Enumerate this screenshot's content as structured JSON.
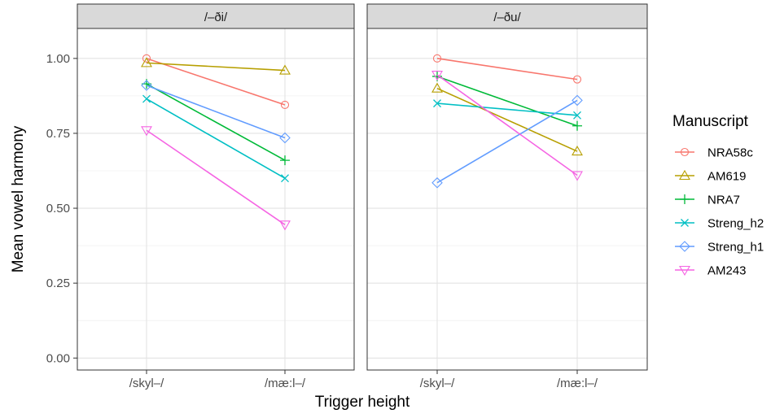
{
  "chart_data": {
    "type": "line",
    "ylabel": "Mean vowel harmony",
    "xlabel": "Trigger height",
    "categories": [
      "/skyl–/",
      "/mæ:l–/"
    ],
    "ylim": [
      -0.04,
      1.1
    ],
    "yticks": [
      0.0,
      0.25,
      0.5,
      0.75,
      1.0
    ],
    "ytick_labels": [
      "0.00",
      "0.25",
      "0.50",
      "0.75",
      "1.00"
    ],
    "grid": true,
    "legend": {
      "title": "Manuscript",
      "placement": "right"
    },
    "series_styles": [
      {
        "name": "NRA58c",
        "color": "#F8766D",
        "marker": "circle"
      },
      {
        "name": "AM619",
        "color": "#B79F00",
        "marker": "triangle-up"
      },
      {
        "name": "NRA7",
        "color": "#00BA38",
        "marker": "plus"
      },
      {
        "name": "Streng_h2",
        "color": "#00BFC4",
        "marker": "cross"
      },
      {
        "name": "Streng_h1",
        "color": "#619CFF",
        "marker": "diamond"
      },
      {
        "name": "AM243",
        "color": "#F564E3",
        "marker": "triangle-down"
      }
    ],
    "panels": [
      {
        "title": "/–ði/",
        "series": [
          {
            "name": "NRA58c",
            "values": [
              1.0,
              0.845
            ]
          },
          {
            "name": "AM619",
            "values": [
              0.985,
              0.96
            ]
          },
          {
            "name": "NRA7",
            "values": [
              0.915,
              0.66
            ]
          },
          {
            "name": "Streng_h2",
            "values": [
              0.865,
              0.6
            ]
          },
          {
            "name": "Streng_h1",
            "values": [
              0.91,
              0.735
            ]
          },
          {
            "name": "AM243",
            "values": [
              0.76,
              0.445
            ]
          }
        ]
      },
      {
        "title": "/–ðu/",
        "series": [
          {
            "name": "NRA58c",
            "values": [
              1.0,
              0.93
            ]
          },
          {
            "name": "AM619",
            "values": [
              0.9,
              0.69
            ]
          },
          {
            "name": "NRA7",
            "values": [
              0.94,
              0.775
            ]
          },
          {
            "name": "Streng_h2",
            "values": [
              0.85,
              0.81
            ]
          },
          {
            "name": "Streng_h1",
            "values": [
              0.585,
              0.86
            ]
          },
          {
            "name": "AM243",
            "values": [
              0.945,
              0.61
            ]
          }
        ]
      }
    ]
  }
}
